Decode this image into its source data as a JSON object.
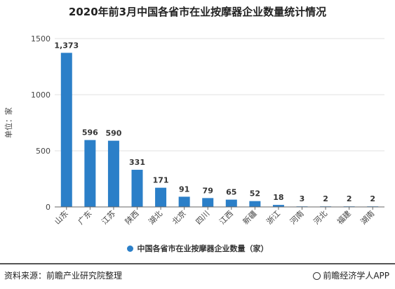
{
  "chart_data": {
    "type": "bar",
    "title": "2020年前3月中国各省市在业按摩器企业数量统计情况",
    "ylabel": "单位：家",
    "xlabel": "",
    "ylim": [
      0,
      1500
    ],
    "yticks": [
      0,
      500,
      1000,
      1500
    ],
    "grid": true,
    "legend_position": "bottom",
    "categories": [
      "山东",
      "广东",
      "江苏",
      "陕西",
      "湖北",
      "北京",
      "四川",
      "江西",
      "新疆",
      "浙江",
      "河南",
      "河北",
      "福建",
      "湖南"
    ],
    "series": [
      {
        "name": "中国各省市在业按摩器企业数量（家）",
        "values": [
          1373,
          596,
          590,
          331,
          171,
          91,
          79,
          65,
          52,
          18,
          3,
          2,
          2,
          2
        ],
        "labels": [
          "1,373",
          "596",
          "590",
          "331",
          "171",
          "91",
          "79",
          "65",
          "52",
          "18",
          "3",
          "2",
          "2",
          "2"
        ]
      }
    ],
    "colors": {
      "bar": "#2b7fc8",
      "grid": "#e0e0e0",
      "axis": "#666666"
    }
  },
  "footer": {
    "source": "资料来源：前瞻产业研究院整理",
    "brand": "前瞻经济学人APP"
  }
}
